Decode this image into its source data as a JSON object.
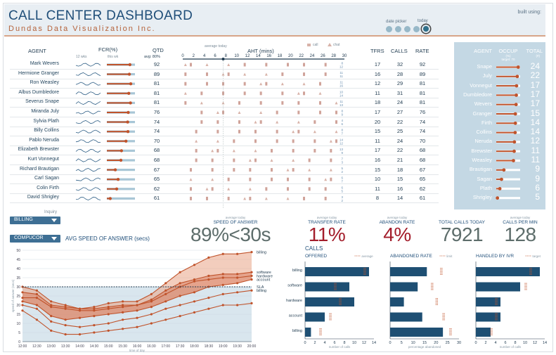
{
  "header": {
    "title": "CALL CENTER DASHBOARD",
    "subtitle": "Dundas Data Visualization Inc.",
    "date_picker_label": "date picker",
    "today_label": "today",
    "built_using": "built using:"
  },
  "columns": {
    "agent": "AGENT",
    "fcr": "FCR(%)",
    "fcr_12wks": "12 wks",
    "fcr_thiswk": "this wk",
    "qtd": "QTD",
    "qtd_avg": "avg: 80%",
    "aht": "AHT (mins)",
    "aht_avg_today": "average today",
    "legend_call": "call",
    "legend_chat": "chat",
    "tfrs": "TFRS",
    "calls": "CALLS",
    "rate": "RATE"
  },
  "aht_ticks": [
    "0",
    "2",
    "4",
    "6",
    "8",
    "10",
    "12",
    "14",
    "16",
    "18",
    "20",
    "22",
    "24",
    "26",
    "28",
    "30"
  ],
  "agents": [
    {
      "name": "Mark Wevers",
      "fcr": 0.82,
      "qtd": "92",
      "tfrs": "17",
      "calls": "32",
      "rate": "92",
      "aht_a": "8",
      "aht_b": "12"
    },
    {
      "name": "Hermione Granger",
      "fcr": 0.8,
      "qtd": "89",
      "tfrs": "16",
      "calls": "28",
      "rate": "89",
      "aht_a": "11",
      "aht_b": "11"
    },
    {
      "name": "Ron Weasley",
      "fcr": 0.85,
      "qtd": "81",
      "tfrs": "12",
      "calls": "29",
      "rate": "81",
      "aht_a": "11",
      "aht_b": "16"
    },
    {
      "name": "Albus Dumbledore",
      "fcr": 0.78,
      "qtd": "81",
      "tfrs": "11",
      "calls": "31",
      "rate": "81",
      "aht_a": "10",
      "aht_b": "14"
    },
    {
      "name": "Severus Snape",
      "fcr": 0.84,
      "qtd": "81",
      "tfrs": "18",
      "calls": "24",
      "rate": "81",
      "aht_a": "11",
      "aht_b": "13"
    },
    {
      "name": "Miranda July",
      "fcr": 0.76,
      "qtd": "76",
      "tfrs": "17",
      "calls": "27",
      "rate": "76",
      "aht_a": "8",
      "aht_b": "9"
    },
    {
      "name": "Sylvia Plath",
      "fcr": 0.74,
      "qtd": "74",
      "tfrs": "20",
      "calls": "22",
      "rate": "74",
      "aht_a": "4",
      "aht_b": "6"
    },
    {
      "name": "Billy Collins",
      "fcr": 0.75,
      "qtd": "74",
      "tfrs": "15",
      "calls": "25",
      "rate": "74",
      "aht_a": "8",
      "aht_b": "7"
    },
    {
      "name": "Pablo Neruda",
      "fcr": 0.68,
      "qtd": "70",
      "tfrs": "11",
      "calls": "24",
      "rate": "70",
      "aht_a": "14",
      "aht_b": "12"
    },
    {
      "name": "Elizabeth Brewster",
      "fcr": 0.52,
      "qtd": "68",
      "tfrs": "17",
      "calls": "22",
      "rate": "68",
      "aht_a": "13",
      "aht_b": "9"
    },
    {
      "name": "Kurt Vonnegut",
      "fcr": 0.5,
      "qtd": "68",
      "tfrs": "16",
      "calls": "21",
      "rate": "68",
      "aht_a": "7",
      "aht_b": "3"
    },
    {
      "name": "Richard Brautigan",
      "fcr": 0.3,
      "qtd": "67",
      "tfrs": "15",
      "calls": "18",
      "rate": "67",
      "aht_a": "5",
      "aht_b": "2"
    },
    {
      "name": "Carl Sagan",
      "fcr": 0.4,
      "qtd": "65",
      "tfrs": "10",
      "calls": "15",
      "rate": "65",
      "aht_a": "6",
      "aht_b": "7"
    },
    {
      "name": "Colin Firth",
      "fcr": 0.35,
      "qtd": "62",
      "tfrs": "11",
      "calls": "16",
      "rate": "62",
      "aht_a": "6",
      "aht_b": "5"
    },
    {
      "name": "David Shrigley",
      "fcr": 0.12,
      "qtd": "61",
      "tfrs": "8",
      "calls": "14",
      "rate": "61",
      "aht_a": "3",
      "aht_b": "2"
    }
  ],
  "right_panel": {
    "agent_header": "AGENT",
    "occup_header": "OCCUP",
    "occup_sub": "(%)",
    "occup_target": "target: 70",
    "total_header": "TOTAL",
    "total_sub": "(#)",
    "rows": [
      {
        "name": "Snape",
        "occup": 0.92,
        "total": "24"
      },
      {
        "name": "July",
        "occup": 0.88,
        "total": "22"
      },
      {
        "name": "Vonnegut",
        "occup": 0.85,
        "total": "17"
      },
      {
        "name": "Dumbledore",
        "occup": 0.84,
        "total": "17"
      },
      {
        "name": "Wevers",
        "occup": 0.83,
        "total": "17"
      },
      {
        "name": "Granger",
        "occup": 0.8,
        "total": "15"
      },
      {
        "name": "Firth",
        "occup": 0.8,
        "total": "14"
      },
      {
        "name": "Collins",
        "occup": 0.79,
        "total": "14"
      },
      {
        "name": "Neruda",
        "occup": 0.76,
        "total": "12"
      },
      {
        "name": "Brewster",
        "occup": 0.75,
        "total": "11"
      },
      {
        "name": "Weasley",
        "occup": 0.72,
        "total": "11"
      },
      {
        "name": "Brautigan",
        "occup": 0.32,
        "total": "9"
      },
      {
        "name": "Sagan",
        "occup": 0.22,
        "total": "9"
      },
      {
        "name": "Plath",
        "occup": 0.15,
        "total": "6"
      },
      {
        "name": "Shrigley",
        "occup": 0.05,
        "total": "5"
      }
    ]
  },
  "controls": {
    "inquiry_label": "Inquiry",
    "billing_dropdown": "BILLING",
    "compucor_dropdown": "COMPUCOR",
    "asa_title": "AVG SPEED OF ANSWER (secs)"
  },
  "kpis": {
    "avg_today": "average today",
    "speed_label": "SPEED OF ANSWER",
    "speed_value": "89%<30s",
    "transfer_label": "TRANSFER RATE",
    "transfer_value": "11%",
    "abandon_label": "ABANDON RATE",
    "abandon_value": "4%",
    "total_label": "TOTAL CALLS TODAY",
    "total_value": "7921",
    "cpm_label": "CALLS PER MIN",
    "cpm_value": "128"
  },
  "colors": {
    "accent": "#c0532b",
    "navy": "#1f4e79",
    "red_kpi": "#a31d2b",
    "gray_kpi": "#5d6d6b"
  },
  "chart_data": [
    {
      "type": "line",
      "title": "AVG SPEED OF ANSWER (secs)",
      "xlabel": "time of day",
      "ylabel": "speed of answer (secs)",
      "x": [
        "12:00",
        "12:30",
        "13:00",
        "13:30",
        "14:00",
        "14:30",
        "15:00",
        "15:30",
        "16:00",
        "16:30",
        "17:00",
        "17:30",
        "18:00",
        "18:30",
        "19:00",
        "19:30",
        "20:00"
      ],
      "ylim": [
        0,
        50
      ],
      "sla": 30,
      "sla_label": "SLA",
      "series": [
        {
          "name": "billing",
          "values": [
            30,
            28,
            22,
            20,
            18,
            19,
            21,
            22,
            22,
            26,
            32,
            38,
            42,
            46,
            48,
            48,
            49
          ]
        },
        {
          "name": "software",
          "values": [
            27,
            26,
            20,
            19,
            18,
            18,
            19,
            20,
            20,
            23,
            28,
            32,
            34,
            36,
            37,
            37,
            38
          ]
        },
        {
          "name": "hardware",
          "values": [
            24,
            24,
            19,
            18,
            17,
            17,
            18,
            19,
            20,
            22,
            26,
            30,
            33,
            34,
            35,
            35,
            36
          ]
        },
        {
          "name": "account",
          "values": [
            22,
            20,
            14,
            12,
            13,
            14,
            15,
            16,
            17,
            19,
            22,
            25,
            27,
            30,
            31,
            32,
            34
          ]
        },
        {
          "name": "billing",
          "values": [
            20,
            18,
            11,
            9,
            8,
            9,
            10,
            12,
            13,
            15,
            18,
            20,
            22,
            24,
            26,
            27,
            28
          ]
        },
        {
          "name": "",
          "values": [
            17,
            12,
            6,
            4,
            4,
            5,
            6,
            7,
            8,
            10,
            12,
            14,
            16,
            18,
            20,
            20,
            21
          ]
        }
      ]
    },
    {
      "type": "bar",
      "title": "OFFERED",
      "xlabel": "number of calls",
      "xlim": [
        0,
        14
      ],
      "categories": [
        "billing",
        "software",
        "hardware",
        "account",
        "billing"
      ],
      "values": [
        13,
        9,
        10,
        4,
        1.2
      ],
      "averages": [
        12,
        6,
        7,
        5,
        3
      ],
      "marker_label": "average"
    },
    {
      "type": "bar",
      "title": "ABANDONED RATE",
      "xlabel": "percentage abandoned",
      "xlim": [
        0,
        30
      ],
      "categories": [
        "billing",
        "software",
        "hardware",
        "account",
        "billing"
      ],
      "values": [
        16,
        12,
        6,
        14,
        23
      ],
      "limits": [
        22,
        18,
        20,
        23,
        26
      ],
      "marker_label": "limit"
    },
    {
      "type": "bar",
      "title": "HANDLED BY IVR",
      "xlabel": "number of calls",
      "xlim": [
        0,
        14
      ],
      "categories": [
        "billing",
        "software",
        "hardware",
        "account",
        "billing"
      ],
      "values": [
        13,
        9,
        5,
        5,
        3
      ],
      "targets": [
        11,
        10,
        4,
        4,
        3
      ],
      "marker_label": "target"
    }
  ],
  "bar_section": {
    "calls_label": "CALLS"
  },
  "bar_ticks": {
    "offered": [
      "0",
      "2",
      "4",
      "6",
      "8",
      "10",
      "12",
      "14"
    ],
    "abandoned": [
      "0",
      "5",
      "10",
      "15",
      "20",
      "25",
      "30"
    ],
    "ivr": [
      "0",
      "2",
      "4",
      "6",
      "8",
      "10",
      "12",
      "14"
    ]
  }
}
